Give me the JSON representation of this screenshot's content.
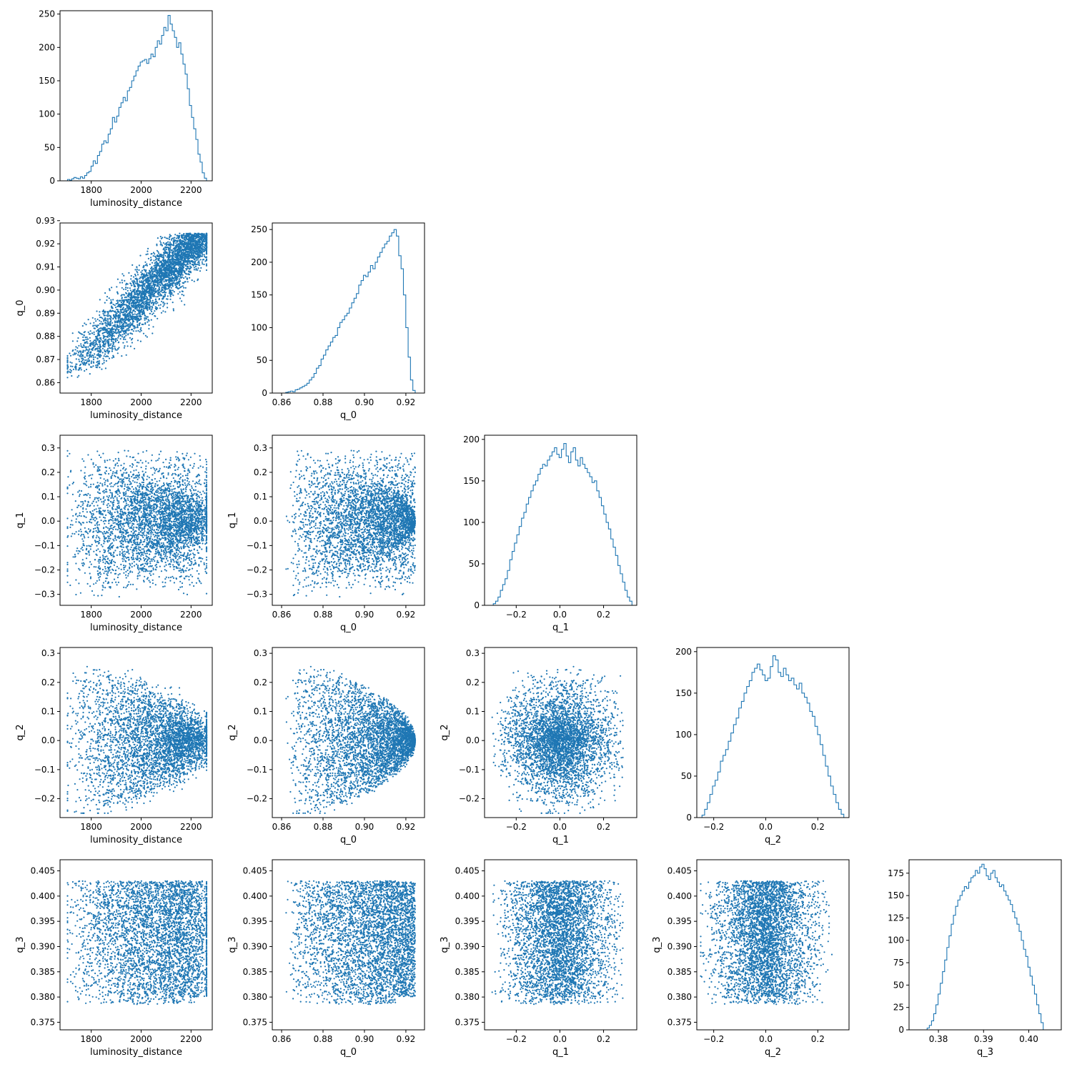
{
  "chart_data": {
    "type": "scatter",
    "layout": "corner-plot",
    "title": "",
    "parameters": [
      "luminosity_distance",
      "q_0",
      "q_1",
      "q_2",
      "q_3"
    ],
    "colors": {
      "series": "#1f77b4",
      "axes": "#000000",
      "background": "#ffffff"
    },
    "grid": false,
    "ranges": {
      "luminosity_distance": [
        1675,
        2285
      ],
      "q_0": [
        0.8555,
        0.929
      ],
      "q_1": [
        -0.345,
        0.352
      ],
      "q_2": [
        -0.265,
        0.32
      ],
      "q_3": [
        0.3735,
        0.4072
      ]
    },
    "ticks": {
      "luminosity_distance": [
        1800,
        2000,
        2200
      ],
      "q_0": [
        0.86,
        0.88,
        0.9,
        0.92
      ],
      "q_1": [
        -0.2,
        0.0,
        0.2
      ],
      "q_2": [
        -0.2,
        0.0,
        0.2
      ],
      "q_3": [
        0.38,
        0.39,
        0.4
      ]
    },
    "y_ticks": {
      "q_0": [
        0.86,
        0.87,
        0.88,
        0.89,
        0.9,
        0.91,
        0.92,
        0.93
      ],
      "q_1": [
        -0.3,
        -0.2,
        -0.1,
        0.0,
        0.1,
        0.2,
        0.3
      ],
      "q_2": [
        -0.2,
        -0.1,
        0.0,
        0.1,
        0.2,
        0.3
      ],
      "q_3": [
        0.375,
        0.38,
        0.385,
        0.39,
        0.395,
        0.4,
        0.405
      ]
    },
    "tick_labels": {
      "luminosity_distance": [
        "1800",
        "2000",
        "2200"
      ],
      "q_0": [
        "0.86",
        "0.88",
        "0.90",
        "0.92"
      ],
      "q_1": [
        "−0.2",
        "0.0",
        "0.2"
      ],
      "q_2": [
        "−0.2",
        "0.0",
        "0.2"
      ],
      "q_3": [
        "0.38",
        "0.39",
        "0.40"
      ]
    },
    "y_tick_labels": {
      "q_0": [
        "0.86",
        "0.87",
        "0.88",
        "0.89",
        "0.90",
        "0.91",
        "0.92",
        "0.93"
      ],
      "q_1": [
        "−0.3",
        "−0.2",
        "−0.1",
        "0.0",
        "0.1",
        "0.2",
        "0.3"
      ],
      "q_2": [
        "−0.2",
        "−0.1",
        "0.0",
        "0.1",
        "0.2",
        "0.3"
      ],
      "q_3": [
        "0.375",
        "0.380",
        "0.385",
        "0.390",
        "0.395",
        "0.400",
        "0.405"
      ]
    },
    "histograms": [
      {
        "parameter": "luminosity_distance",
        "ylim": [
          0,
          255
        ],
        "yticks": [
          0,
          50,
          100,
          150,
          200,
          250
        ],
        "bin_edges_range": [
          1705,
          2262
        ],
        "counts": [
          2,
          1,
          3,
          5,
          4,
          3,
          6,
          4,
          8,
          12,
          14,
          22,
          30,
          26,
          38,
          44,
          55,
          60,
          57,
          70,
          78,
          95,
          88,
          97,
          110,
          117,
          125,
          120,
          135,
          140,
          150,
          157,
          165,
          172,
          178,
          180,
          182,
          176,
          183,
          190,
          186,
          200,
          210,
          205,
          218,
          230,
          225,
          248,
          235,
          225,
          215,
          200,
          207,
          190,
          175,
          160,
          138,
          113,
          95,
          78,
          62,
          40,
          28,
          12,
          4
        ]
      },
      {
        "parameter": "q_0",
        "ylim": [
          0,
          260
        ],
        "yticks": [
          0,
          50,
          100,
          150,
          200,
          250
        ],
        "bin_edges_range": [
          0.862,
          0.9245
        ],
        "counts": [
          1,
          2,
          3,
          2,
          5,
          6,
          8,
          10,
          12,
          15,
          20,
          24,
          30,
          38,
          42,
          52,
          58,
          66,
          72,
          78,
          85,
          88,
          100,
          108,
          112,
          118,
          122,
          130,
          138,
          145,
          152,
          165,
          172,
          180,
          178,
          185,
          195,
          190,
          200,
          208,
          215,
          222,
          228,
          232,
          240,
          245,
          250,
          240,
          210,
          190,
          150,
          100,
          55,
          20,
          4
        ]
      },
      {
        "parameter": "q_1",
        "ylim": [
          0,
          205
        ],
        "yticks": [
          0,
          50,
          100,
          150,
          200
        ],
        "bin_edges_range": [
          -0.305,
          0.33
        ],
        "counts": [
          2,
          5,
          10,
          18,
          25,
          32,
          42,
          55,
          65,
          75,
          85,
          95,
          105,
          112,
          122,
          130,
          138,
          145,
          150,
          158,
          165,
          170,
          168,
          175,
          180,
          185,
          190,
          182,
          178,
          188,
          195,
          180,
          172,
          185,
          190,
          175,
          168,
          178,
          170,
          165,
          160,
          155,
          148,
          150,
          138,
          130,
          120,
          110,
          100,
          92,
          80,
          70,
          60,
          48,
          38,
          28,
          18,
          10,
          5
        ]
      },
      {
        "parameter": "q_2",
        "ylim": [
          0,
          205
        ],
        "yticks": [
          0,
          50,
          100,
          150,
          200
        ],
        "bin_edges_range": [
          -0.245,
          0.3
        ],
        "counts": [
          3,
          10,
          18,
          28,
          38,
          45,
          55,
          68,
          75,
          82,
          92,
          102,
          112,
          120,
          132,
          140,
          150,
          158,
          165,
          175,
          180,
          185,
          178,
          172,
          165,
          168,
          182,
          195,
          190,
          175,
          170,
          180,
          172,
          165,
          168,
          160,
          155,
          162,
          150,
          145,
          138,
          128,
          122,
          110,
          100,
          88,
          75,
          62,
          50,
          38,
          28,
          18,
          10,
          4
        ]
      },
      {
        "parameter": "q_3",
        "ylim": [
          0,
          190
        ],
        "yticks": [
          0,
          25,
          50,
          75,
          100,
          125,
          150,
          175
        ],
        "bin_edges_range": [
          0.3775,
          0.4032
        ],
        "counts": [
          2,
          5,
          10,
          18,
          28,
          40,
          52,
          65,
          78,
          92,
          105,
          118,
          128,
          138,
          145,
          150,
          155,
          160,
          158,
          165,
          170,
          172,
          178,
          175,
          182,
          185,
          180,
          172,
          168,
          175,
          178,
          170,
          165,
          160,
          162,
          155,
          150,
          145,
          140,
          132,
          125,
          118,
          110,
          100,
          90,
          82,
          70,
          60,
          50,
          40,
          28,
          18,
          8
        ]
      }
    ],
    "scatter_panels": [
      {
        "x": "luminosity_distance",
        "y": "q_0"
      },
      {
        "x": "luminosity_distance",
        "y": "q_1"
      },
      {
        "x": "q_0",
        "y": "q_1"
      },
      {
        "x": "luminosity_distance",
        "y": "q_2"
      },
      {
        "x": "q_0",
        "y": "q_2"
      },
      {
        "x": "q_1",
        "y": "q_2"
      },
      {
        "x": "luminosity_distance",
        "y": "q_3"
      },
      {
        "x": "q_0",
        "y": "q_3"
      },
      {
        "x": "q_1",
        "y": "q_3"
      },
      {
        "x": "q_2",
        "y": "q_3"
      }
    ],
    "samples_drawn_per_panel": 4000
  }
}
